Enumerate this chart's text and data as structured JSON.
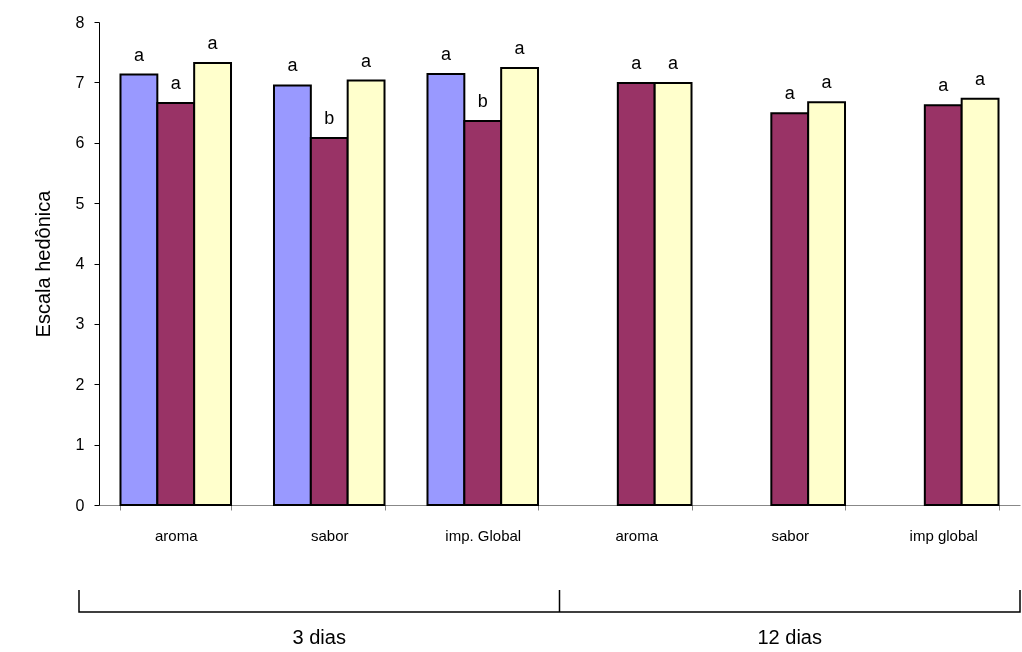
{
  "chart_data": {
    "type": "bar",
    "ylabel": "Escala hedônica",
    "categories": [
      "aroma",
      "sabor",
      "imp. Global",
      "aroma",
      "sabor",
      "imp global"
    ],
    "series": [
      {
        "color": "#9999ff",
        "values": [
          7.13,
          6.95,
          7.14,
          null,
          null,
          null
        ],
        "value_labels": [
          "a",
          "a",
          "a",
          null,
          null,
          null
        ]
      },
      {
        "color": "#993366",
        "values": [
          6.66,
          6.08,
          6.36,
          6.99,
          6.49,
          6.62
        ],
        "value_labels": [
          "a",
          "b",
          "b",
          "a",
          "a",
          "a"
        ]
      },
      {
        "color": "#ffffcc",
        "values": [
          7.32,
          7.03,
          7.24,
          6.99,
          6.67,
          6.73
        ],
        "value_labels": [
          "a",
          "a",
          "a",
          "a",
          "a",
          "a"
        ]
      }
    ],
    "ylim": [
      0,
      8
    ],
    "yticks": [
      0,
      1,
      2,
      3,
      4,
      5,
      6,
      7,
      8
    ],
    "annotations": [
      "3 dias",
      "12 dias"
    ]
  }
}
